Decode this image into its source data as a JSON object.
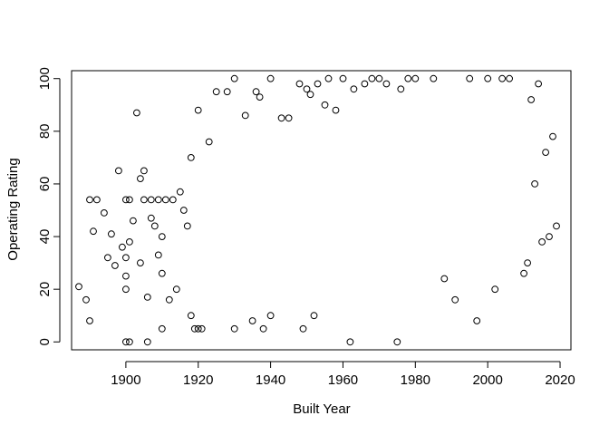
{
  "chart_data": {
    "type": "scatter",
    "title": "",
    "xlabel": "Built Year",
    "ylabel": "Operating Rating",
    "xlim": [
      1885,
      2023
    ],
    "ylim": [
      -3,
      103
    ],
    "xticks": [
      1900,
      1920,
      1940,
      1960,
      1980,
      2000,
      2020
    ],
    "yticks": [
      0,
      20,
      40,
      60,
      80,
      100
    ],
    "grid": false,
    "legend": "none",
    "marker": "open-circle",
    "color": "#000000",
    "series": [
      {
        "points": [
          [
            1887,
            21
          ],
          [
            1889,
            16
          ],
          [
            1890,
            8
          ],
          [
            1890,
            54
          ],
          [
            1891,
            42
          ],
          [
            1892,
            54
          ],
          [
            1894,
            49
          ],
          [
            1895,
            32
          ],
          [
            1896,
            41
          ],
          [
            1897,
            29
          ],
          [
            1898,
            65
          ],
          [
            1899,
            36
          ],
          [
            1900,
            54
          ],
          [
            1900,
            32
          ],
          [
            1900,
            25
          ],
          [
            1900,
            20
          ],
          [
            1900,
            0
          ],
          [
            1901,
            38
          ],
          [
            1901,
            54
          ],
          [
            1901,
            0
          ],
          [
            1902,
            46
          ],
          [
            1903,
            87
          ],
          [
            1904,
            30
          ],
          [
            1904,
            62
          ],
          [
            1905,
            65
          ],
          [
            1905,
            54
          ],
          [
            1906,
            17
          ],
          [
            1906,
            0
          ],
          [
            1907,
            47
          ],
          [
            1907,
            54
          ],
          [
            1908,
            44
          ],
          [
            1909,
            33
          ],
          [
            1909,
            54
          ],
          [
            1910,
            40
          ],
          [
            1910,
            26
          ],
          [
            1910,
            5
          ],
          [
            1911,
            54
          ],
          [
            1912,
            16
          ],
          [
            1913,
            54
          ],
          [
            1914,
            20
          ],
          [
            1915,
            57
          ],
          [
            1916,
            50
          ],
          [
            1917,
            44
          ],
          [
            1918,
            70
          ],
          [
            1918,
            10
          ],
          [
            1919,
            5
          ],
          [
            1920,
            88
          ],
          [
            1920,
            5
          ],
          [
            1921,
            5
          ],
          [
            1923,
            76
          ],
          [
            1925,
            95
          ],
          [
            1928,
            95
          ],
          [
            1930,
            100
          ],
          [
            1930,
            5
          ],
          [
            1933,
            86
          ],
          [
            1935,
            8
          ],
          [
            1936,
            95
          ],
          [
            1937,
            93
          ],
          [
            1938,
            5
          ],
          [
            1940,
            100
          ],
          [
            1940,
            10
          ],
          [
            1943,
            85
          ],
          [
            1945,
            85
          ],
          [
            1948,
            98
          ],
          [
            1949,
            5
          ],
          [
            1950,
            96
          ],
          [
            1951,
            94
          ],
          [
            1952,
            10
          ],
          [
            1953,
            98
          ],
          [
            1955,
            90
          ],
          [
            1956,
            100
          ],
          [
            1958,
            88
          ],
          [
            1960,
            100
          ],
          [
            1962,
            0
          ],
          [
            1963,
            96
          ],
          [
            1966,
            98
          ],
          [
            1968,
            100
          ],
          [
            1970,
            100
          ],
          [
            1972,
            98
          ],
          [
            1975,
            0
          ],
          [
            1976,
            96
          ],
          [
            1978,
            100
          ],
          [
            1980,
            100
          ],
          [
            1985,
            100
          ],
          [
            1988,
            24
          ],
          [
            1991,
            16
          ],
          [
            1995,
            100
          ],
          [
            1997,
            8
          ],
          [
            2000,
            100
          ],
          [
            2002,
            20
          ],
          [
            2004,
            100
          ],
          [
            2006,
            100
          ],
          [
            2010,
            26
          ],
          [
            2012,
            92
          ],
          [
            2014,
            98
          ],
          [
            2016,
            72
          ],
          [
            2018,
            78
          ],
          [
            2019,
            44
          ],
          [
            2017,
            40
          ],
          [
            2015,
            38
          ],
          [
            2013,
            60
          ],
          [
            2011,
            30
          ]
        ]
      }
    ]
  }
}
